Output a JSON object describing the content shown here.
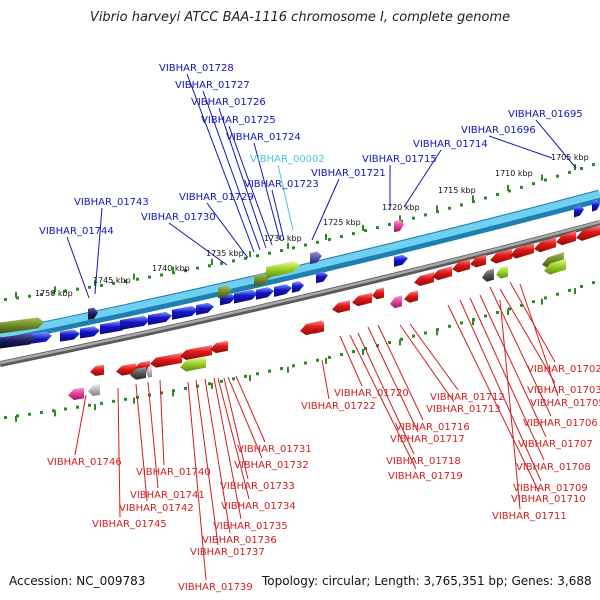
{
  "title": "Vibrio harveyi ATCC BAA-1116 chromosome I, complete genome",
  "accession": "Accession: NC_009783",
  "topology": "Topology: circular; Length: 3,765,351 bp; Genes: 3,688",
  "colors": {
    "forward_label": "#1515b5",
    "reverse_label": "#d21e1e",
    "highlight_label": "#4fc3dd",
    "forward_strand": "#45b4e0",
    "reverse_strand": "#8c8c8c",
    "forward_gene": "#1414c8",
    "reverse_gene": "#e01818",
    "rna_gene": "#e23c9a",
    "olive_gene": "#6e8a26",
    "lime_gene": "#9acd24",
    "gray_gene": "#666666",
    "tick": "#2a8a24"
  },
  "scale_labels": [
    "1705 kbp",
    "1710 kbp",
    "1715 kbp",
    "1720 kbp",
    "1725 kbp",
    "1730 kbp",
    "1735 kbp",
    "1740 kbp",
    "1745 kbp",
    "1750 kbp"
  ],
  "forward_labels": [
    "VIBHAR_01695",
    "VIBHAR_01696",
    "VIBHAR_01714",
    "VIBHAR_01715",
    "VIBHAR_01721",
    "VIBHAR_00002",
    "VIBHAR_01723",
    "VIBHAR_01724",
    "VIBHAR_01725",
    "VIBHAR_01726",
    "VIBHAR_01727",
    "VIBHAR_01728",
    "VIBHAR_01729",
    "VIBHAR_01730",
    "VIBHAR_01743",
    "VIBHAR_01744"
  ],
  "highlighted_label": "VIBHAR_00002",
  "reverse_labels": [
    "VIBHAR_01702",
    "VIBHAR_01703",
    "VIBHAR_01705",
    "VIBHAR_01706",
    "VIBHAR_01707",
    "VIBHAR_01708",
    "VIBHAR_01709",
    "VIBHAR_01710",
    "VIBHAR_01711",
    "VIBHAR_01712",
    "VIBHAR_01713",
    "VIBHAR_01716",
    "VIBHAR_01717",
    "VIBHAR_01718",
    "VIBHAR_01719",
    "VIBHAR_01720",
    "VIBHAR_01722",
    "VIBHAR_01731",
    "VIBHAR_01732",
    "VIBHAR_01733",
    "VIBHAR_01734",
    "VIBHAR_01735",
    "VIBHAR_01736",
    "VIBHAR_01737",
    "VIBHAR_01739",
    "VIBHAR_01740",
    "VIBHAR_01741",
    "VIBHAR_01742",
    "VIBHAR_01745",
    "VIBHAR_01746"
  ]
}
